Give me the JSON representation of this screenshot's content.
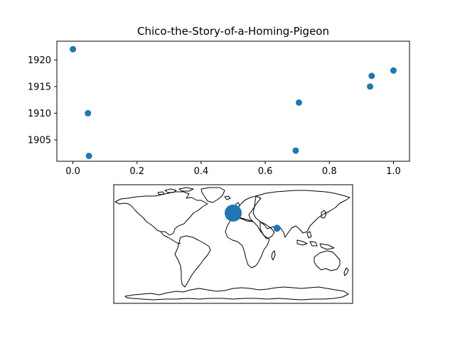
{
  "chart_data": [
    {
      "type": "scatter",
      "title": "Chico-the-Story-of-a-Homing-Pigeon",
      "xlabel": "",
      "ylabel": "",
      "xlim": [
        -0.05,
        1.05
      ],
      "ylim": [
        1901,
        1923.5
      ],
      "xticks": [
        0.0,
        0.2,
        0.4,
        0.6,
        0.8,
        1.0
      ],
      "xtick_labels": [
        "0.0",
        "0.2",
        "0.4",
        "0.6",
        "0.8",
        "1.0"
      ],
      "yticks": [
        1905,
        1910,
        1915,
        1920
      ],
      "ytick_labels": [
        "1905",
        "1910",
        "1915",
        "1920"
      ],
      "grid": false,
      "color": "#1f77b4",
      "points": [
        {
          "x": 0.0,
          "y": 1922
        },
        {
          "x": 0.047,
          "y": 1910
        },
        {
          "x": 0.05,
          "y": 1902
        },
        {
          "x": 0.695,
          "y": 1903
        },
        {
          "x": 0.705,
          "y": 1912
        },
        {
          "x": 0.927,
          "y": 1915
        },
        {
          "x": 0.932,
          "y": 1917
        },
        {
          "x": 1.0,
          "y": 1918
        }
      ]
    },
    {
      "type": "scatter",
      "title": "",
      "projection": "world-map",
      "xlim": [
        -180,
        180
      ],
      "ylim": [
        -90,
        90
      ],
      "color": "#1f77b4",
      "points": [
        {
          "lon": 0,
          "lat": 47,
          "size": "large"
        },
        {
          "lon": 66,
          "lat": 24,
          "size": "small"
        }
      ]
    }
  ]
}
